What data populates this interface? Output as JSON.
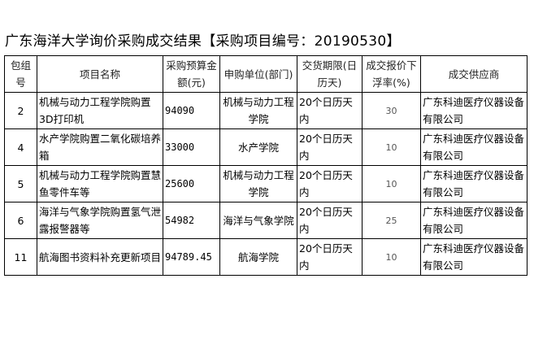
{
  "title": "广东海洋大学询价采购成交结果【采购项目编号：20190530】",
  "headers": [
    "包组号",
    "项目名称",
    "采购预算金额(元)",
    "申购单位(部门)",
    "交货期限(日历天)",
    "成交报价下浮率(%)",
    "成交供应商"
  ],
  "rows": [
    {
      "pkg": "2",
      "name": "机械与动力工程学院购置3D打印机",
      "budget": "94090",
      "dept": "机械与动力工程学院",
      "delivery": "20个日历天内",
      "rate": "30",
      "supplier": "广东科迪医疗仪器设备有限公司"
    },
    {
      "pkg": "4",
      "name": "水产学院购置二氧化碳培养箱",
      "budget": "33000",
      "dept": "水产学院",
      "delivery": "20个日历天内",
      "rate": "10",
      "supplier": "广东科迪医疗仪器设备有限公司"
    },
    {
      "pkg": "5",
      "name": "机械与动力工程学院购置慧鱼零件车等",
      "budget": "25600",
      "dept": "机械与动力工程学院",
      "delivery": "20个日历天内",
      "rate": "10",
      "supplier": "广东科迪医疗仪器设备有限公司"
    },
    {
      "pkg": "6",
      "name": "海洋与气象学院购置氢气泄露报警器等",
      "budget": "54982",
      "dept": "海洋与气象学院",
      "delivery": "20个日历天内",
      "rate": "25",
      "supplier": "广东科迪医疗仪器设备有限公司"
    },
    {
      "pkg": "11",
      "name": "航海图书资料补充更新项目",
      "budget": "94789.45",
      "dept": "航海学院",
      "delivery": "20个日历天内",
      "rate": "10",
      "supplier": "广东科迪医疗仪器设备有限公司"
    }
  ]
}
